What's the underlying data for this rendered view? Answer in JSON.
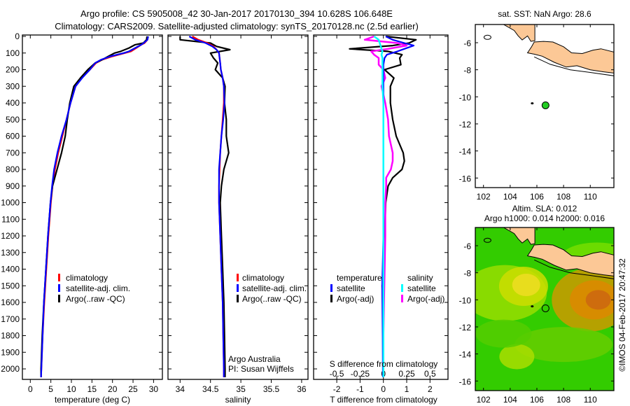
{
  "header": {
    "title_line1": "Argo profile: CS 5905008_42 30-Jan-2017 20170130_394 10.628S 106.648E",
    "title_line2": "Climatology: CARS2009. Satellite-adjusted climatology: synTS_20170128.nc (2.5d earlier)"
  },
  "colors": {
    "climatology": "#ff0000",
    "satellite": "#0000ff",
    "argo": "#000000",
    "salinity_satellite": "#00ffff",
    "salinity_argo": "#ff00ff",
    "land": "#fcc896",
    "marker": "#22cc22"
  },
  "chart_data": [
    {
      "type": "line",
      "name": "temperature-profile",
      "xlabel": "temperature (deg C)",
      "xlim": [
        -2,
        31
      ],
      "xticks": [
        0,
        5,
        10,
        15,
        20,
        25,
        30
      ],
      "ylim": [
        0,
        2050
      ],
      "yticks": [
        0,
        100,
        200,
        300,
        400,
        500,
        600,
        700,
        800,
        900,
        1000,
        1100,
        1200,
        1300,
        1400,
        1500,
        1600,
        1700,
        1800,
        1900,
        2000
      ],
      "legend": [
        "climatology",
        "satellite-adj. clim.",
        "Argo(..raw -QC)"
      ],
      "depth": [
        0,
        20,
        40,
        50,
        70,
        90,
        100,
        120,
        140,
        160,
        200,
        250,
        300,
        400,
        500,
        600,
        700,
        800,
        900,
        1000,
        1200,
        1400,
        1600,
        1800,
        2000,
        2050
      ],
      "series": [
        {
          "name": "climatology",
          "values": [
            28.6,
            28.5,
            27.8,
            27,
            25.8,
            24.5,
            23,
            20,
            17.5,
            16,
            14.5,
            12.5,
            11,
            9.8,
            8.8,
            7.8,
            6.8,
            6,
            5.4,
            5,
            4.4,
            3.9,
            3.4,
            3,
            2.7,
            2.6
          ]
        },
        {
          "name": "satellite-adj. clim.",
          "values": [
            28.7,
            28.5,
            27.6,
            27,
            25.5,
            24,
            22.7,
            19.5,
            17.2,
            15.8,
            14.5,
            12.6,
            11,
            9.8,
            8.8,
            7.6,
            6.6,
            5.8,
            5.3,
            4.9,
            4.3,
            3.8,
            3.3,
            3,
            2.7,
            2.6
          ]
        },
        {
          "name": "Argo(..raw -QC)",
          "values": [
            28.4,
            28.3,
            27.5,
            25.5,
            24,
            22,
            20.5,
            19,
            17.5,
            15.8,
            14,
            12.2,
            10.6,
            9.6,
            9,
            8.5,
            7.6,
            6.5,
            5.4,
            4.9,
            4.3,
            3.8,
            3.3,
            2.9,
            2.6,
            2.6
          ]
        }
      ]
    },
    {
      "type": "line",
      "name": "salinity-profile",
      "xlabel": "salinity",
      "xlim": [
        33.9,
        36.1
      ],
      "xticks": [
        34,
        34.5,
        35,
        35.5,
        36
      ],
      "ylim": [
        0,
        2050
      ],
      "legend": [
        "climatology",
        "satellite-adj. clim.",
        "Argo(..raw -QC)"
      ],
      "depth": [
        0,
        20,
        40,
        60,
        80,
        100,
        130,
        160,
        200,
        250,
        300,
        400,
        500,
        600,
        700,
        800,
        900,
        1000,
        1200,
        1400,
        1600,
        1800,
        2000,
        2050
      ],
      "series": [
        {
          "name": "climatology",
          "values": [
            34.2,
            34.3,
            34.45,
            34.55,
            34.6,
            34.64,
            34.65,
            34.66,
            34.67,
            34.7,
            34.72,
            34.72,
            34.7,
            34.68,
            34.66,
            34.65,
            34.64,
            34.64,
            34.66,
            34.68,
            34.7,
            34.71,
            34.72,
            34.72
          ]
        },
        {
          "name": "satellite-adj. clim.",
          "values": [
            34.15,
            34.25,
            34.42,
            34.53,
            34.6,
            34.64,
            34.65,
            34.66,
            34.67,
            34.7,
            34.72,
            34.73,
            34.71,
            34.68,
            34.66,
            34.64,
            34.64,
            34.64,
            34.66,
            34.68,
            34.7,
            34.71,
            34.72,
            34.72
          ]
        },
        {
          "name": "Argo(..raw -QC)",
          "values": [
            34.0,
            34.0,
            34.5,
            34.6,
            34.82,
            34.5,
            34.55,
            34.62,
            34.58,
            34.7,
            34.74,
            34.73,
            34.76,
            34.76,
            34.8,
            34.72,
            34.68,
            34.66,
            34.68,
            34.7,
            34.72,
            34.73,
            34.74,
            34.74
          ]
        }
      ],
      "annotations": [
        "Argo Australia",
        "PI: Susan Wijffels"
      ]
    },
    {
      "type": "line",
      "name": "difference-profile",
      "xlabel": "T difference from climatology",
      "xlim": [
        -3,
        2.8
      ],
      "xticks": [
        -2,
        -1,
        0,
        1,
        2
      ],
      "x2label": "S difference from climatology",
      "x2lim": [
        -0.75,
        0.7
      ],
      "x2ticks": [
        -0.5,
        -0.25,
        0,
        0.25,
        0.5
      ],
      "x2ticklabels": [
        "-0.5",
        "-0.25",
        "0",
        "0.25",
        "0.5"
      ],
      "ylim": [
        0,
        2050
      ],
      "legend": {
        "temperature_header": "temperature",
        "salinity_header": "salinity",
        "items": [
          "satellite",
          "Argo(-adj)",
          "satellite",
          "Argo(-adj)"
        ]
      },
      "depth": [
        0,
        20,
        40,
        55,
        75,
        90,
        110,
        130,
        170,
        200,
        250,
        300,
        400,
        500,
        600,
        700,
        750,
        800,
        850,
        900,
        1000,
        1200,
        1500,
        1800,
        2050
      ],
      "series": [
        {
          "name": "temperature satellite",
          "values": [
            0.1,
            0.4,
            0.9,
            1.3,
            0.9,
            0.6,
            0.15,
            0.05,
            0,
            0,
            0,
            0,
            0,
            0,
            0,
            0,
            0,
            0,
            0,
            0,
            0,
            0,
            -0.05,
            -0.03,
            -0.02
          ]
        },
        {
          "name": "temperature Argo(-adj)",
          "values": [
            0.1,
            1.4,
            1.1,
            0.4,
            -1.45,
            0.2,
            0.8,
            0.7,
            0.75,
            0.05,
            0.45,
            0.3,
            0.3,
            0.4,
            0.55,
            0.85,
            0.9,
            0.8,
            0.4,
            0.2,
            0.1,
            0.05,
            -0.05,
            0,
            0
          ]
        },
        {
          "name": "salinity satellite",
          "values": [
            -0.1,
            -0.05,
            -0.04,
            -0.03,
            -0.02,
            -0.01,
            -0.02,
            -0.01,
            -0.01,
            -0.01,
            -0.01,
            -0.01,
            0,
            0,
            0,
            0,
            0,
            0,
            0,
            0,
            0,
            0,
            0,
            0,
            0
          ]
        },
        {
          "name": "salinity Argo(-adj)",
          "values": [
            -0.1,
            -0.2,
            0.15,
            0.25,
            0.05,
            -0.13,
            -0.1,
            -0.05,
            -0.05,
            0,
            0.02,
            -0.02,
            0.02,
            0.05,
            0.06,
            0.1,
            0.1,
            0.08,
            0.03,
            0.03,
            0.02,
            0.02,
            0.01,
            0,
            0
          ]
        }
      ]
    },
    {
      "type": "scatter",
      "name": "sst-map",
      "title": "sat. SST: NaN Argo: 28.6",
      "xlim": [
        101.4,
        111.8
      ],
      "xticks": [
        102,
        104,
        106,
        108,
        110
      ],
      "ylim": [
        -16.7,
        -4.65
      ],
      "yticks": [
        -6,
        -8,
        -10,
        -12,
        -14,
        -16
      ],
      "points": [
        {
          "lon": 106.648,
          "lat": -10.628
        }
      ]
    },
    {
      "type": "heatmap",
      "name": "sla-map",
      "title_line1": "Altim. SLA: 0.012",
      "title_line2": "Argo h1000: 0.014 h2000: 0.016",
      "xlim": [
        101.4,
        111.8
      ],
      "xticks": [
        102,
        104,
        106,
        108,
        110
      ],
      "ylim": [
        -16.7,
        -4.65
      ],
      "yticks": [
        -6,
        -8,
        -10,
        -12,
        -14,
        -16
      ],
      "points": [
        {
          "lon": 106.648,
          "lat": -10.628
        }
      ]
    }
  ],
  "footer": {
    "copyright": "©IMOS 04-Feb-2017 20:47:32"
  }
}
